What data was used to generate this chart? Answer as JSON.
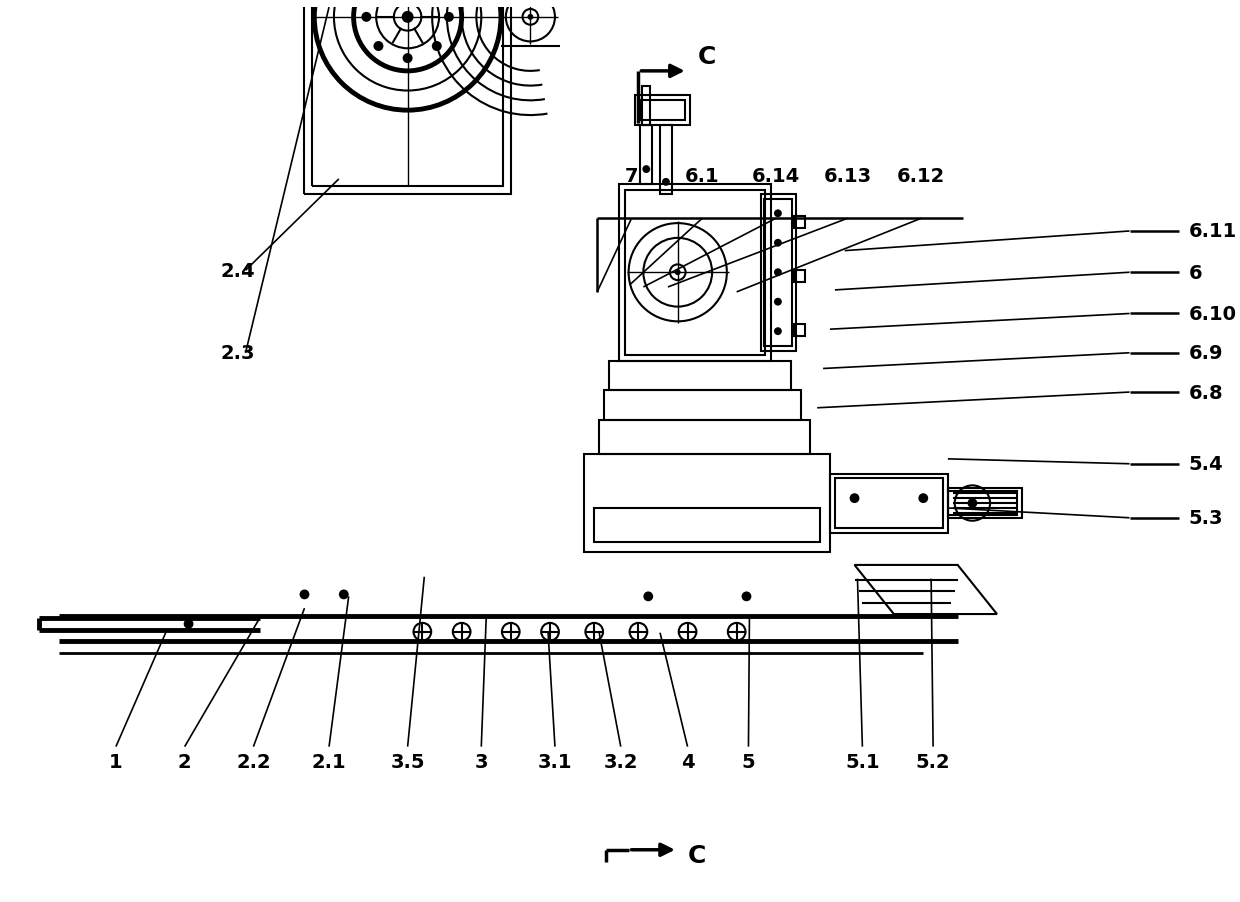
{
  "bg_color": "#ffffff",
  "lc": "#000000",
  "lw": 1.5,
  "blw": 3.5,
  "bottom_labels": [
    [
      "1",
      118,
      768
    ],
    [
      "2",
      188,
      768
    ],
    [
      "2.2",
      258,
      768
    ],
    [
      "2.1",
      335,
      768
    ],
    [
      "3.5",
      415,
      768
    ],
    [
      "3",
      490,
      768
    ],
    [
      "3.1",
      565,
      768
    ],
    [
      "3.2",
      632,
      768
    ],
    [
      "4",
      700,
      768
    ],
    [
      "5",
      762,
      768
    ],
    [
      "5.1",
      878,
      768
    ],
    [
      "5.2",
      950,
      768
    ]
  ],
  "right_labels": [
    [
      "6.11",
      1210,
      228
    ],
    [
      "6",
      1210,
      270
    ],
    [
      "6.10",
      1210,
      312
    ],
    [
      "6.9",
      1210,
      352
    ],
    [
      "6.8",
      1210,
      392
    ],
    [
      "5.4",
      1210,
      465
    ],
    [
      "5.3",
      1210,
      520
    ]
  ],
  "top_labels": [
    [
      "7",
      643,
      172
    ],
    [
      "6.1",
      715,
      172
    ],
    [
      "6.14",
      790,
      172
    ],
    [
      "6.13",
      863,
      172
    ],
    [
      "6.12",
      938,
      172
    ]
  ],
  "left_labels": [
    [
      "2.4",
      225,
      268
    ],
    [
      "2.3",
      225,
      352
    ]
  ]
}
